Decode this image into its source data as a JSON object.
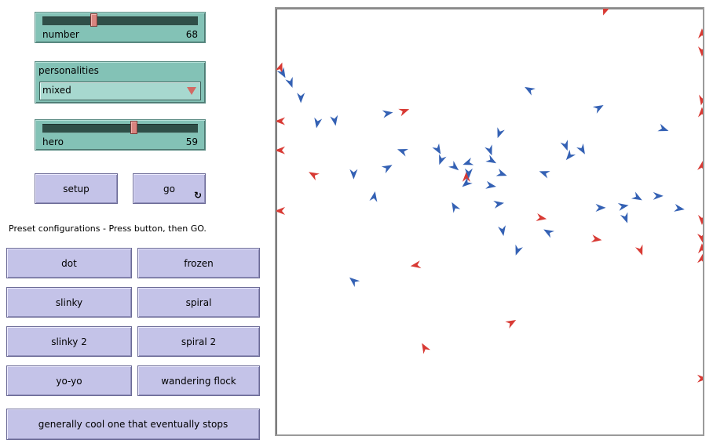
{
  "sliders": {
    "number": {
      "label": "number",
      "value": "68",
      "fraction": 0.33
    },
    "hero": {
      "label": "hero",
      "value": "59",
      "fraction": 0.59
    }
  },
  "chooser": {
    "label": "personalities",
    "selected": "mixed"
  },
  "buttons": {
    "setup": "setup",
    "go": "go"
  },
  "preset_note": "Preset configurations - Press button, then GO.",
  "presets": {
    "dot": "dot",
    "frozen": "frozen",
    "slinky": "slinky",
    "spiral": "spiral",
    "slinky2": "slinky 2",
    "spiral2": "spiral 2",
    "yoyo": "yo-yo",
    "wandering": "wandering flock",
    "cool": "generally cool one that eventually stops"
  },
  "icons": {
    "forever": "forever-icon",
    "dropdown": "chevron-down-icon",
    "agent": "agent-arrow-icon"
  },
  "colors": {
    "red_agent": "#d83a34",
    "blue_agent": "#3461b4"
  },
  "world": {
    "width": 541,
    "height": 541,
    "agents": [
      [
        "r",
        417,
        2,
        200
      ],
      [
        "r",
        540,
        32,
        0
      ],
      [
        "r",
        540,
        54,
        180
      ],
      [
        "r",
        540,
        116,
        190
      ],
      [
        "r",
        540,
        132,
        0
      ],
      [
        "r",
        540,
        200,
        10
      ],
      [
        "r",
        540,
        268,
        180
      ],
      [
        "r",
        540,
        291,
        170
      ],
      [
        "r",
        540,
        305,
        0
      ],
      [
        "r",
        540,
        318,
        10
      ],
      [
        "r",
        540,
        470,
        90
      ],
      [
        "r",
        5,
        75,
        20
      ],
      [
        "r",
        5,
        143,
        270
      ],
      [
        "r",
        5,
        180,
        270
      ],
      [
        "r",
        5,
        257,
        270
      ],
      [
        "r",
        162,
        130,
        70
      ],
      [
        "r",
        47,
        211,
        300
      ],
      [
        "r",
        241,
        214,
        0
      ],
      [
        "r",
        336,
        266,
        100
      ],
      [
        "r",
        406,
        293,
        100
      ],
      [
        "r",
        462,
        307,
        160
      ],
      [
        "r",
        177,
        326,
        260
      ],
      [
        "r",
        298,
        399,
        60
      ],
      [
        "r",
        188,
        431,
        330
      ],
      [
        "b",
        8,
        82,
        150
      ],
      [
        "b",
        18,
        94,
        160
      ],
      [
        "b",
        31,
        113,
        180
      ],
      [
        "b",
        52,
        145,
        190
      ],
      [
        "b",
        74,
        142,
        170
      ],
      [
        "b",
        141,
        133,
        80
      ],
      [
        "b",
        160,
        181,
        290
      ],
      [
        "b",
        98,
        210,
        180
      ],
      [
        "b",
        141,
        202,
        60
      ],
      [
        "b",
        124,
        239,
        10
      ],
      [
        "b",
        205,
        179,
        150
      ],
      [
        "b",
        209,
        192,
        200
      ],
      [
        "b",
        226,
        201,
        130
      ],
      [
        "b",
        243,
        196,
        250
      ],
      [
        "b",
        244,
        209,
        180
      ],
      [
        "b",
        271,
        180,
        160
      ],
      [
        "b",
        273,
        193,
        120
      ],
      [
        "b",
        283,
        158,
        200
      ],
      [
        "b",
        286,
        210,
        110
      ],
      [
        "b",
        272,
        225,
        100
      ],
      [
        "b",
        241,
        222,
        230
      ],
      [
        "b",
        340,
        209,
        290
      ],
      [
        "b",
        321,
        103,
        300
      ],
      [
        "b",
        409,
        126,
        60
      ],
      [
        "b",
        491,
        153,
        110
      ],
      [
        "b",
        367,
        174,
        160
      ],
      [
        "b",
        372,
        187,
        220
      ],
      [
        "b",
        388,
        179,
        150
      ],
      [
        "b",
        226,
        252,
        330
      ],
      [
        "b",
        282,
        248,
        80
      ],
      [
        "b",
        287,
        282,
        170
      ],
      [
        "b",
        306,
        307,
        200
      ],
      [
        "b",
        345,
        284,
        300
      ],
      [
        "b",
        411,
        253,
        90
      ],
      [
        "b",
        440,
        251,
        80
      ],
      [
        "b",
        458,
        240,
        120
      ],
      [
        "b",
        443,
        266,
        160
      ],
      [
        "b",
        484,
        238,
        90
      ],
      [
        "b",
        511,
        254,
        100
      ],
      [
        "b",
        98,
        346,
        310
      ]
    ]
  }
}
